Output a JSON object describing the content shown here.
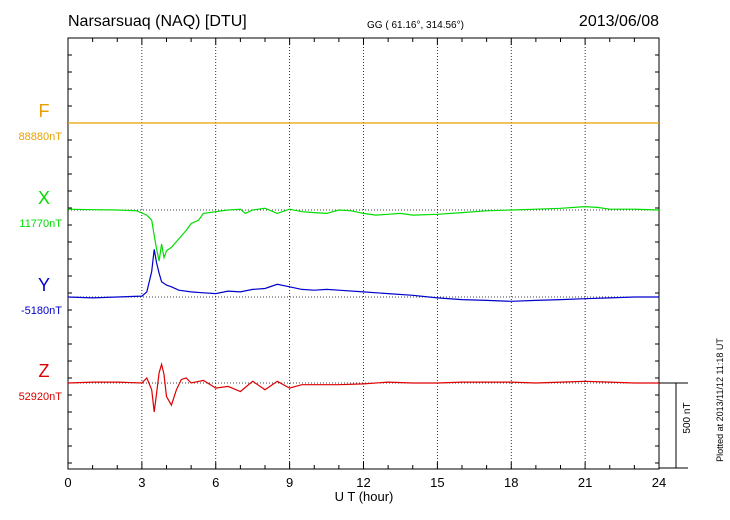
{
  "header": {
    "station": "Narsarsuaq (NAQ)  [DTU]",
    "coords": "GG ( 61.16°, 314.56°)",
    "date": "2013/06/08"
  },
  "footer": {
    "plotted": "Plotted at 2013/11/12 11:18 UT"
  },
  "scale_bar": {
    "label": "500 nT",
    "value_nT": 500
  },
  "colors": {
    "F": "#e8a000",
    "X": "#00dd00",
    "Y": "#0000cc",
    "Z": "#dd0000",
    "axis": "#000000"
  },
  "chart_data": {
    "type": "line",
    "xlabel": "U T (hour)",
    "xlim": [
      0,
      24
    ],
    "xticks": [
      0,
      3,
      6,
      9,
      12,
      15,
      18,
      21,
      24
    ],
    "tick_labels": [
      "0",
      "3",
      "6",
      "9",
      "12",
      "15",
      "18",
      "21",
      "24"
    ],
    "series": [
      {
        "name": "F",
        "baseline_label": "88880nT",
        "color": "#e8a000",
        "x": [
          0,
          24
        ],
        "dev": [
          0,
          0
        ]
      },
      {
        "name": "X",
        "baseline_label": "11770nT",
        "color": "#00dd00",
        "x": [
          0,
          1,
          2,
          2.8,
          3.2,
          3.4,
          3.5,
          3.6,
          3.7,
          3.8,
          3.9,
          4.0,
          4.2,
          4.5,
          4.8,
          5.0,
          5.3,
          5.5,
          6.0,
          6.5,
          7.0,
          7.2,
          7.5,
          8.0,
          8.5,
          9.0,
          9.5,
          10.0,
          10.5,
          11.0,
          11.5,
          12.0,
          12.5,
          13.0,
          13.5,
          14.0,
          15.0,
          16.0,
          17.0,
          18.0,
          19.0,
          20.0,
          21.0,
          21.5,
          22.0,
          23.0,
          24.0
        ],
        "dev": [
          5,
          2,
          0,
          -5,
          -30,
          -60,
          -150,
          -230,
          -300,
          -200,
          -280,
          -240,
          -220,
          -170,
          -120,
          -80,
          -60,
          -20,
          -10,
          0,
          5,
          -20,
          0,
          10,
          -20,
          5,
          -10,
          -15,
          -20,
          0,
          -5,
          -20,
          -30,
          -25,
          -20,
          -30,
          -25,
          -15,
          -5,
          0,
          5,
          10,
          20,
          15,
          5,
          5,
          0
        ]
      },
      {
        "name": "Y",
        "baseline_label": "-5180nT",
        "color": "#0000cc",
        "x": [
          0,
          1,
          2,
          3,
          3.2,
          3.4,
          3.5,
          3.6,
          3.7,
          3.8,
          4.0,
          4.2,
          4.5,
          5.0,
          5.5,
          6.0,
          6.5,
          7.0,
          7.5,
          8.0,
          8.5,
          9.0,
          9.5,
          10.0,
          10.5,
          11.0,
          12.0,
          13.0,
          14.0,
          15.0,
          16.0,
          17.0,
          18.0,
          19.0,
          20.0,
          21.0,
          22.0,
          23.0,
          24.0
        ],
        "dev": [
          0,
          -5,
          0,
          5,
          30,
          150,
          280,
          200,
          140,
          90,
          70,
          60,
          40,
          30,
          25,
          20,
          35,
          30,
          45,
          50,
          75,
          60,
          45,
          40,
          45,
          40,
          30,
          20,
          10,
          -5,
          -15,
          -20,
          -25,
          -20,
          -15,
          -10,
          -5,
          0,
          0
        ]
      },
      {
        "name": "Z",
        "baseline_label": "52920nT",
        "color": "#dd0000",
        "x": [
          0,
          1,
          2,
          3,
          3.2,
          3.4,
          3.5,
          3.6,
          3.7,
          3.8,
          3.9,
          4.0,
          4.2,
          4.4,
          4.6,
          4.8,
          5.0,
          5.5,
          6.0,
          6.5,
          7.0,
          7.5,
          8.0,
          8.5,
          9.0,
          9.5,
          10.0,
          11.0,
          12.0,
          13.0,
          14.0,
          15.0,
          16.0,
          17.0,
          18.0,
          19.0,
          20.0,
          21.0,
          22.0,
          23.0,
          24.0
        ],
        "dev": [
          0,
          5,
          5,
          0,
          30,
          -40,
          -170,
          -60,
          60,
          110,
          50,
          -80,
          -130,
          -40,
          20,
          30,
          0,
          15,
          -30,
          -20,
          -50,
          10,
          -40,
          10,
          -30,
          -10,
          -10,
          -10,
          -5,
          5,
          0,
          0,
          5,
          5,
          5,
          0,
          5,
          10,
          5,
          0,
          0
        ]
      }
    ]
  }
}
